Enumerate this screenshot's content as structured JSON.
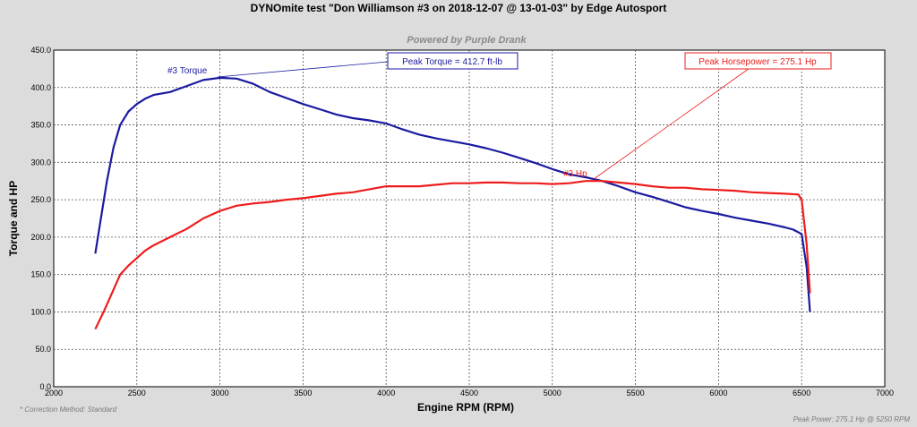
{
  "chart_data": {
    "type": "line",
    "title": "DYNOmite test \"Don Williamson #3 on 2018-12-07 @ 13-01-03\" by Edge Autosport",
    "subtitle": "Powered by Purple Drank",
    "xlabel": "Engine RPM (RPM)",
    "ylabel": "Torque and HP",
    "xlim": [
      2000,
      7000
    ],
    "ylim": [
      0,
      450
    ],
    "x_ticks": [
      "2000",
      "2500",
      "3000",
      "3500",
      "4000",
      "4500",
      "5000",
      "5500",
      "6000",
      "6500",
      "7000"
    ],
    "y_ticks": [
      "0.0",
      "50.0",
      "100.0",
      "150.0",
      "200.0",
      "250.0",
      "300.0",
      "350.0",
      "400.0",
      "450.0"
    ],
    "grid": true,
    "series": [
      {
        "name": "#3 Torque",
        "color": "#1a1aa0",
        "points": [
          [
            2250,
            178
          ],
          [
            2280,
            220
          ],
          [
            2320,
            275
          ],
          [
            2360,
            320
          ],
          [
            2400,
            350
          ],
          [
            2450,
            368
          ],
          [
            2500,
            378
          ],
          [
            2550,
            385
          ],
          [
            2600,
            390
          ],
          [
            2700,
            394
          ],
          [
            2800,
            402
          ],
          [
            2900,
            410
          ],
          [
            3000,
            413
          ],
          [
            3100,
            412
          ],
          [
            3200,
            405
          ],
          [
            3300,
            394
          ],
          [
            3400,
            386
          ],
          [
            3500,
            378
          ],
          [
            3600,
            371
          ],
          [
            3700,
            364
          ],
          [
            3800,
            359
          ],
          [
            3900,
            356
          ],
          [
            4000,
            352
          ],
          [
            4100,
            344
          ],
          [
            4200,
            337
          ],
          [
            4300,
            332
          ],
          [
            4400,
            328
          ],
          [
            4500,
            324
          ],
          [
            4600,
            319
          ],
          [
            4700,
            313
          ],
          [
            4800,
            306
          ],
          [
            4900,
            299
          ],
          [
            5000,
            291
          ],
          [
            5100,
            284
          ],
          [
            5200,
            280
          ],
          [
            5300,
            275
          ],
          [
            5400,
            268
          ],
          [
            5500,
            260
          ],
          [
            5600,
            254
          ],
          [
            5700,
            247
          ],
          [
            5800,
            240
          ],
          [
            5900,
            235
          ],
          [
            6000,
            231
          ],
          [
            6100,
            226
          ],
          [
            6200,
            222
          ],
          [
            6300,
            218
          ],
          [
            6400,
            213
          ],
          [
            6450,
            210
          ],
          [
            6500,
            204
          ],
          [
            6530,
            160
          ],
          [
            6550,
            100
          ]
        ]
      },
      {
        "name": "#3 Hp",
        "color": "#ee1c1c",
        "points": [
          [
            2250,
            77
          ],
          [
            2300,
            100
          ],
          [
            2350,
            125
          ],
          [
            2400,
            150
          ],
          [
            2450,
            162
          ],
          [
            2500,
            172
          ],
          [
            2550,
            182
          ],
          [
            2600,
            189
          ],
          [
            2700,
            200
          ],
          [
            2800,
            211
          ],
          [
            2900,
            225
          ],
          [
            3000,
            235
          ],
          [
            3100,
            242
          ],
          [
            3200,
            245
          ],
          [
            3300,
            247
          ],
          [
            3400,
            250
          ],
          [
            3500,
            252
          ],
          [
            3600,
            255
          ],
          [
            3700,
            258
          ],
          [
            3800,
            260
          ],
          [
            3900,
            264
          ],
          [
            4000,
            268
          ],
          [
            4100,
            268
          ],
          [
            4200,
            268
          ],
          [
            4300,
            270
          ],
          [
            4400,
            272
          ],
          [
            4500,
            272
          ],
          [
            4600,
            273
          ],
          [
            4700,
            273
          ],
          [
            4800,
            272
          ],
          [
            4900,
            272
          ],
          [
            5000,
            271
          ],
          [
            5100,
            272
          ],
          [
            5200,
            275
          ],
          [
            5300,
            275
          ],
          [
            5400,
            273
          ],
          [
            5500,
            271
          ],
          [
            5600,
            268
          ],
          [
            5700,
            266
          ],
          [
            5800,
            266
          ],
          [
            5900,
            264
          ],
          [
            6000,
            263
          ],
          [
            6100,
            262
          ],
          [
            6200,
            260
          ],
          [
            6300,
            259
          ],
          [
            6400,
            258
          ],
          [
            6480,
            257
          ],
          [
            6500,
            250
          ],
          [
            6530,
            190
          ],
          [
            6550,
            125
          ]
        ]
      }
    ],
    "annotations": {
      "series_label_torque": "#3 Torque",
      "series_label_hp": "#3 Hp",
      "peak_torque": "Peak Torque = 412.7 ft-lb",
      "peak_hp": "Peak Horsepower = 275.1 Hp"
    },
    "footer_left": "* Correction Method: Standard",
    "footer_right": "Peak Power: 275.1 Hp @ 5250 RPM"
  }
}
